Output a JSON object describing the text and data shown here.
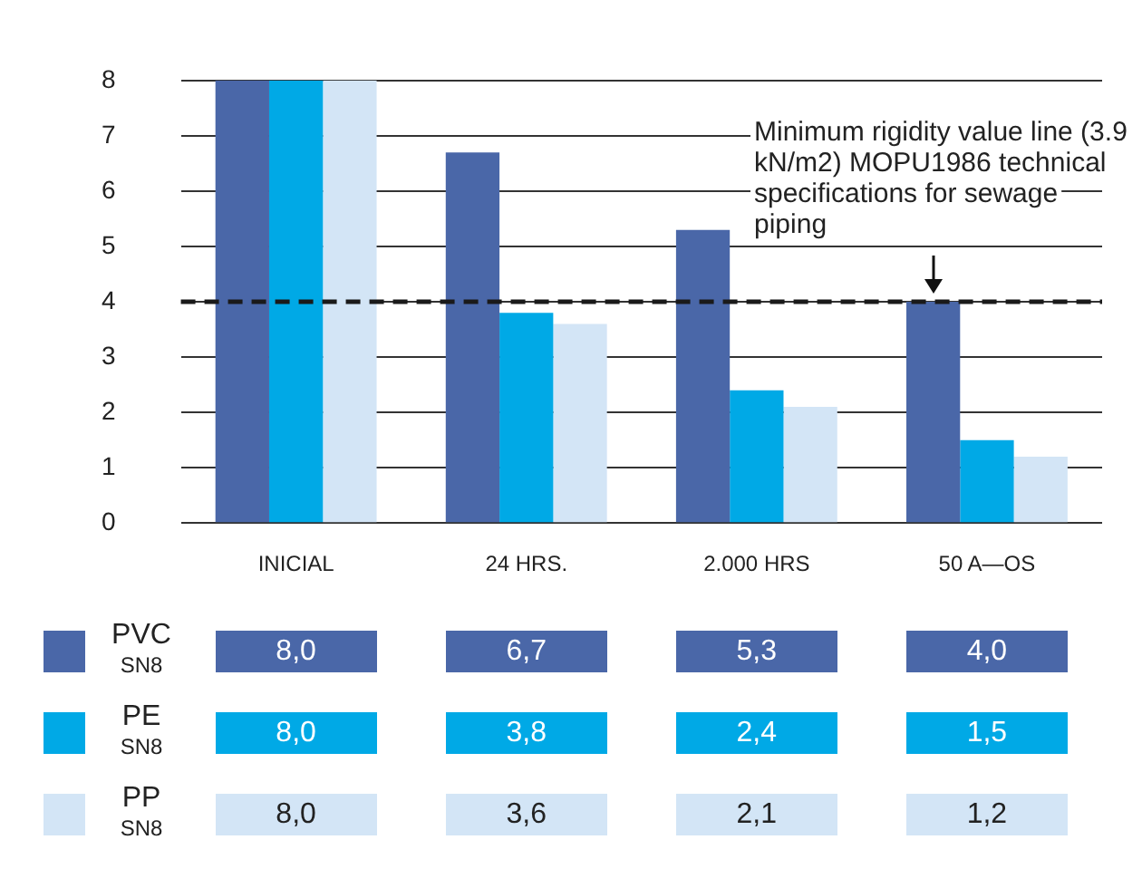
{
  "chart_data": {
    "type": "bar",
    "categories": [
      "INICIAL",
      "24 HRS.",
      "2.000 HRS",
      "50 A—OS"
    ],
    "series": [
      {
        "name": "PVC SN8",
        "color": "#4a67a8",
        "values": [
          8.0,
          6.7,
          5.3,
          4.0
        ],
        "value_labels": [
          "8,0",
          "6,7",
          "5,3",
          "4,0"
        ]
      },
      {
        "name": "PE SN8",
        "color": "#00a9e6",
        "values": [
          8.0,
          3.8,
          2.4,
          1.5
        ],
        "value_labels": [
          "8,0",
          "3,8",
          "2,4",
          "1,5"
        ]
      },
      {
        "name": "PP SN8",
        "color": "#d3e5f6",
        "values": [
          8.0,
          3.6,
          2.1,
          1.2
        ],
        "value_labels": [
          "8,0",
          "3,6",
          "2,1",
          "1,2"
        ]
      }
    ],
    "ylim": [
      0,
      8
    ],
    "yticks": [
      0,
      1,
      2,
      3,
      4,
      5,
      6,
      7,
      8
    ],
    "grid": "y",
    "legend": "bottom",
    "ref_lines": [
      {
        "axis": "y",
        "value": 4,
        "label": "Minimum rigidity value line (3.9 kN/m2) MOPU1986 technical specifications for sewage piping",
        "color": "#1a1a1a",
        "line_style": "dashed"
      }
    ]
  }
}
